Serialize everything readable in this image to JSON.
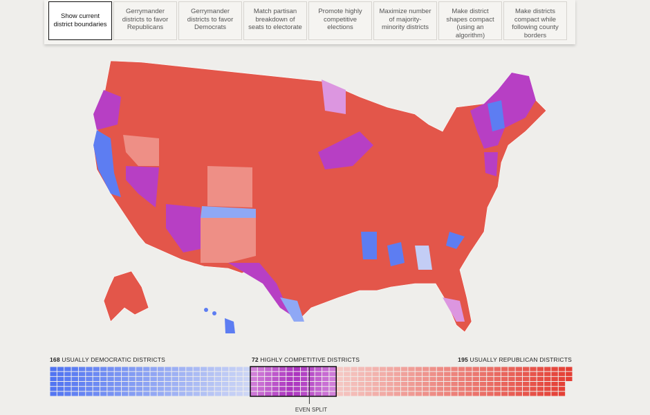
{
  "tabs": [
    "Show current district boundaries",
    "Gerrymander districts to favor Republicans",
    "Gerrymander districts to favor Democrats",
    "Match partisan breakdown of seats to electorate",
    "Promote highly competitive elections",
    "Maximize number of majority-minority districts",
    "Make district shapes compact (using an algorithm)",
    "Make districts compact while following county borders"
  ],
  "summary": {
    "democratic": {
      "count": 168,
      "label": "USUALLY DEMOCRATIC DISTRICTS"
    },
    "competitive": {
      "count": 72,
      "label": "HIGHLY COMPETITIVE DISTRICTS"
    },
    "republican": {
      "count": 195,
      "label": "USUALLY REPUBLICAN DISTRICTS"
    },
    "even_split": "EVEN SPLIT"
  }
}
